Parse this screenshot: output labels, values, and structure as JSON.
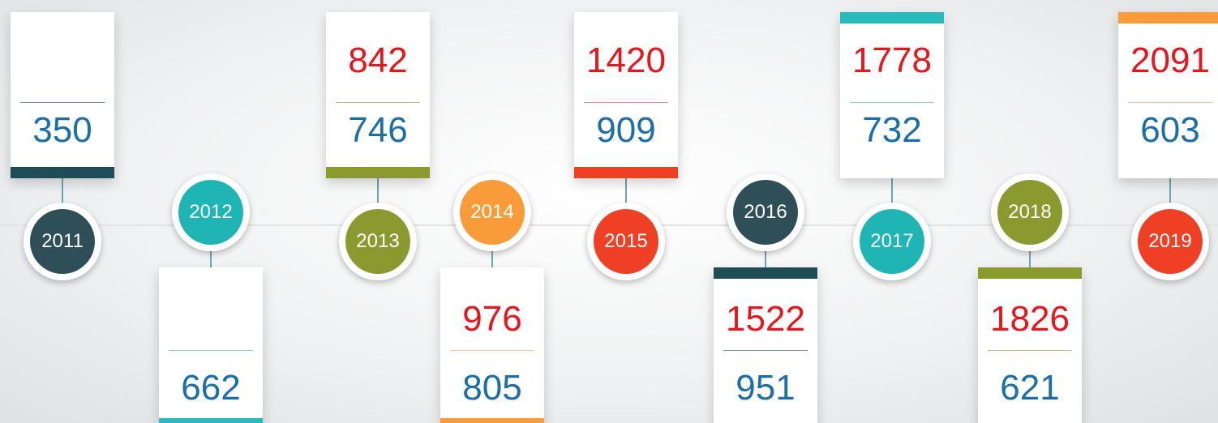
{
  "timeline": {
    "items": [
      {
        "year": "2011",
        "blue": "350",
        "circle_color": "#2e4f57",
        "bar_color": "#1e4d57"
      },
      {
        "year": "2012",
        "blue": "662",
        "circle_color": "#1fb5b5",
        "bar_color": "#2bb7c0"
      },
      {
        "year": "2013",
        "red": "842",
        "blue": "746",
        "circle_color": "#8b9a2e",
        "bar_color": "#8b9a2e"
      },
      {
        "year": "2014",
        "red": "976",
        "blue": "805",
        "circle_color": "#f99b38",
        "bar_color": "#f99b38"
      },
      {
        "year": "2015",
        "red": "1420",
        "blue": "909",
        "circle_color": "#ef3f24",
        "bar_color": "#ef3f24"
      },
      {
        "year": "2016",
        "red": "1522",
        "blue": "951",
        "circle_color": "#2e4f57",
        "bar_color": "#1e4d57"
      },
      {
        "year": "2017",
        "red": "1778",
        "blue": "732",
        "circle_color": "#1fb5b5",
        "bar_color": "#27bcbc"
      },
      {
        "year": "2018",
        "red": "1826",
        "blue": "621",
        "circle_color": "#8b9a2e",
        "bar_color": "#8b9a2e"
      },
      {
        "year": "2019",
        "red": "2091",
        "blue": "603",
        "circle_color": "#ef3f24",
        "bar_color": "#f99b38"
      }
    ]
  }
}
